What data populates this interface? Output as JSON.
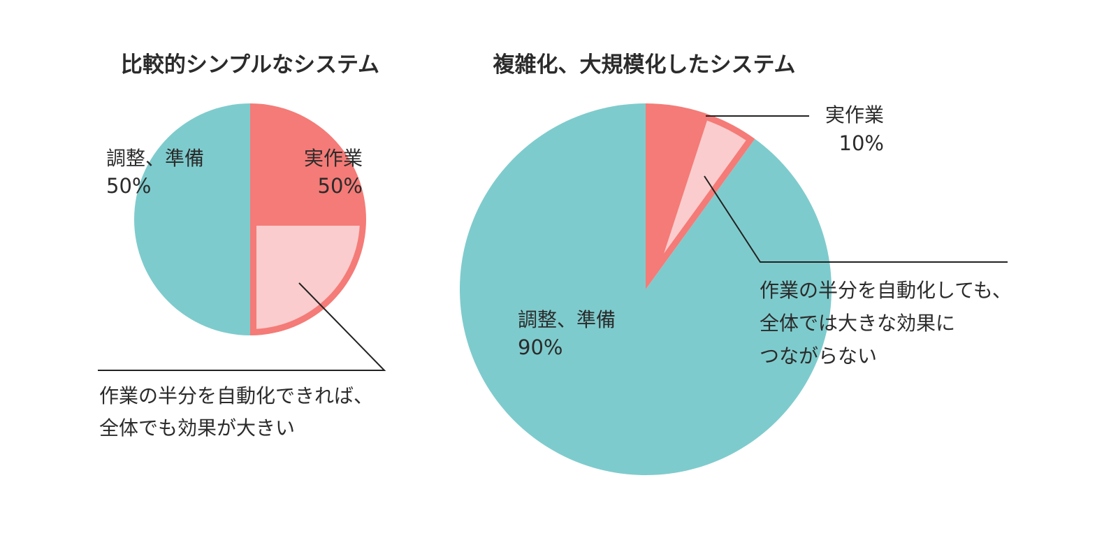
{
  "colors": {
    "prep": "#7ECBCD",
    "work": "#F47B77",
    "automated": "#FACCCD",
    "text": "#2b2b2b",
    "line": "#222222"
  },
  "chart_data": [
    {
      "type": "pie",
      "title": "比較的シンプルなシステム",
      "slices": [
        {
          "name": "調整、準備",
          "value": 50,
          "label": "50%",
          "color": "#7ECBCD"
        },
        {
          "name": "実作業",
          "value": 50,
          "label": "50%",
          "color": "#F47B77",
          "automated_share": 0.5,
          "automated_color": "#FACCCD"
        }
      ],
      "annotation": [
        "作業の半分を自動化できれば、",
        "全体でも効果が大きい"
      ]
    },
    {
      "type": "pie",
      "title": "複雑化、大規模化したシステム",
      "slices": [
        {
          "name": "調整、準備",
          "value": 90,
          "label": "90%",
          "color": "#7ECBCD"
        },
        {
          "name": "実作業",
          "value": 10,
          "label": "10%",
          "color": "#F47B77",
          "automated_share": 0.5,
          "automated_color": "#FACCCD"
        }
      ],
      "annotation": [
        "作業の半分を自動化しても、",
        "全体では大きな効果に",
        "つながらない"
      ]
    }
  ]
}
